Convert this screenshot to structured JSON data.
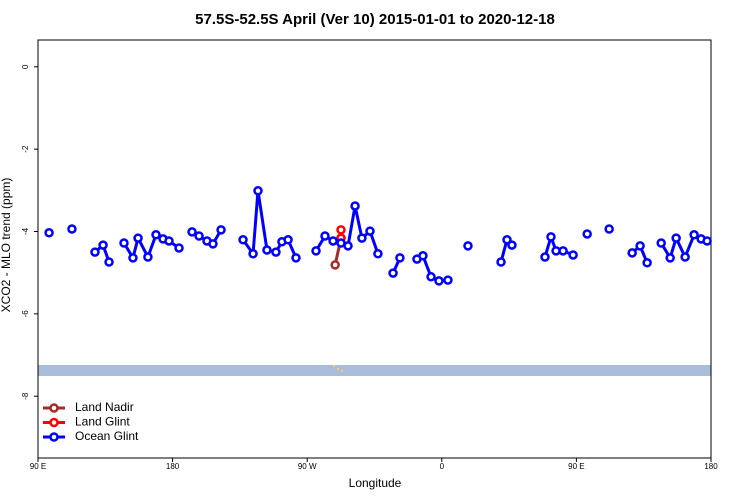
{
  "chart_data": {
    "type": "line",
    "title": "57.5S-52.5S April (Ver 10)   2015-01-01 to 2020-12-18",
    "x_label": "Longitude",
    "y_label": "XCO2 - MLO trend (ppm)",
    "xlim": [
      90,
      540
    ],
    "xticks": [
      {
        "value": 90,
        "label": "90 E"
      },
      {
        "value": 180,
        "label": "180"
      },
      {
        "value": 270,
        "label": "90 W"
      },
      {
        "value": 360,
        "label": "0"
      },
      {
        "value": 450,
        "label": "90 E"
      },
      {
        "value": 540,
        "label": "180"
      }
    ],
    "ylim": [
      -9.5,
      0.65
    ],
    "yticks": [
      0,
      -2,
      -4,
      -6,
      -8
    ],
    "legend": "bottom-left",
    "series": [
      {
        "name": "Land Nadir",
        "color": "#a52a2a",
        "x": [
          288.7,
          292.6
        ],
        "values": [
          -4.81,
          -4.16
        ]
      },
      {
        "name": "Land Glint",
        "color": "#ff0000",
        "x": [
          292.6,
          292.6
        ],
        "values": [
          -3.96,
          -4.16
        ]
      },
      {
        "name": "Ocean Glint",
        "color": "#0000ff",
        "x": [
          97.4,
          null,
          112.7,
          null,
          128.1,
          133.5,
          137.5,
          null,
          147.5,
          153.5,
          156.9,
          163.5,
          168.9,
          173.6,
          177.6,
          184.3,
          null,
          193.0,
          197.7,
          203.0,
          207.0,
          212.4,
          null,
          227.1,
          233.8,
          237.1,
          243.1,
          249.1,
          253.1,
          257.2,
          262.5,
          null,
          275.9,
          281.9,
          287.3,
          292.6,
          297.3,
          302.0,
          306.6,
          312.0,
          317.3,
          null,
          327.4,
          332.0,
          null,
          343.4,
          347.4,
          352.8,
          358.1,
          364.1,
          null,
          377.5,
          null,
          399.6,
          403.6,
          406.9,
          null,
          429.0,
          433.0,
          436.4,
          441.1,
          447.8,
          null,
          457.2,
          null,
          471.9,
          null,
          487.3,
          492.6,
          497.3,
          null,
          506.7,
          512.7,
          516.7,
          522.7,
          528.7,
          533.4,
          537.4
        ],
        "values": [
          -4.03,
          null,
          -3.94,
          null,
          -4.5,
          -4.33,
          -4.74,
          null,
          -4.28,
          -4.64,
          -4.16,
          -4.62,
          -4.08,
          -4.18,
          -4.23,
          -4.4,
          null,
          -4.01,
          -4.11,
          -4.23,
          -4.3,
          -3.96,
          null,
          -4.2,
          -4.54,
          -3.01,
          -4.45,
          -4.5,
          -4.25,
          -4.2,
          -4.64,
          null,
          -4.47,
          -4.11,
          -4.23,
          -4.28,
          -4.35,
          -3.38,
          -4.16,
          -3.99,
          -4.54,
          null,
          -5.01,
          -4.64,
          null,
          -4.67,
          -4.59,
          -5.1,
          -5.2,
          -5.18,
          null,
          -4.35,
          null,
          -4.74,
          -4.2,
          -4.33,
          null,
          -4.62,
          -4.13,
          -4.47,
          -4.47,
          -4.57,
          null,
          -4.06,
          null,
          -3.94,
          null,
          -4.52,
          -4.35,
          -4.76,
          null,
          -4.28,
          -4.64,
          -4.16,
          -4.62,
          -4.08,
          -4.18,
          -4.23
        ]
      }
    ]
  }
}
